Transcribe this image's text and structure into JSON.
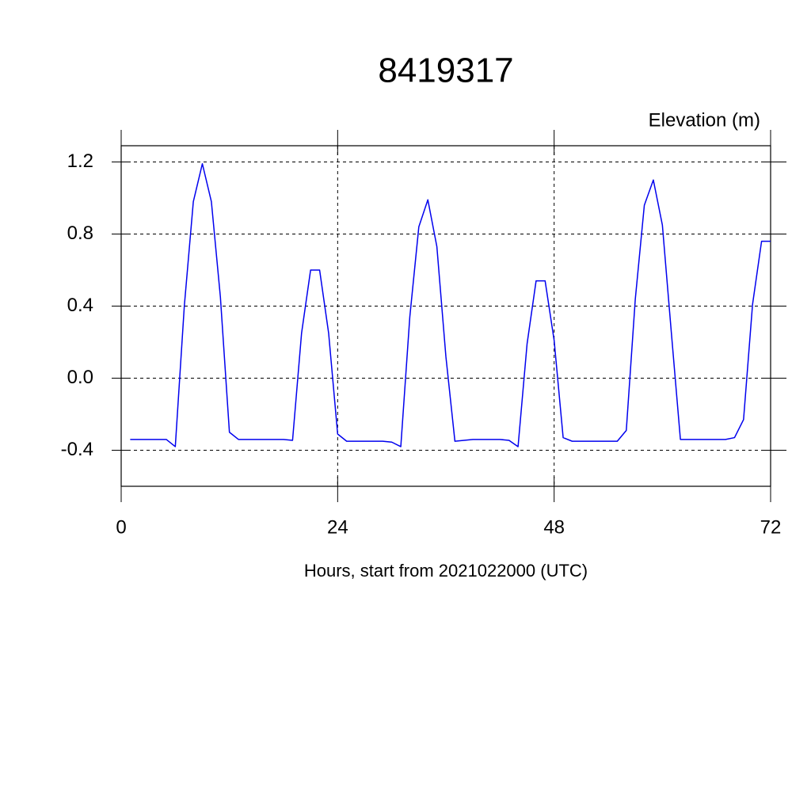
{
  "chart_data": {
    "type": "line",
    "title": "8419317",
    "y_axis_label": "Elevation (m)",
    "x_axis_label": "Hours, start from 2021022000 (UTC)",
    "x": [
      1,
      2,
      3,
      4,
      5,
      6,
      7,
      8,
      9,
      10,
      11,
      12,
      13,
      14,
      15,
      16,
      17,
      18,
      19,
      20,
      21,
      22,
      23,
      24,
      25,
      26,
      27,
      28,
      29,
      30,
      31,
      32,
      33,
      34,
      35,
      36,
      37,
      38,
      39,
      40,
      41,
      42,
      43,
      44,
      45,
      46,
      47,
      48,
      49,
      50,
      51,
      52,
      53,
      54,
      55,
      56,
      57,
      58,
      59,
      60,
      61,
      62,
      63,
      64,
      65,
      66,
      67,
      68,
      69,
      70,
      71,
      72
    ],
    "series": [
      {
        "name": "Elevation",
        "color": "#0000ee",
        "values": [
          -0.34,
          -0.34,
          -0.34,
          -0.34,
          -0.34,
          -0.38,
          0.4,
          0.98,
          1.19,
          0.98,
          0.45,
          -0.3,
          -0.34,
          -0.34,
          -0.34,
          -0.34,
          -0.34,
          -0.34,
          -0.345,
          0.25,
          0.6,
          0.6,
          0.25,
          -0.31,
          -0.35,
          -0.35,
          -0.35,
          -0.35,
          -0.35,
          -0.355,
          -0.38,
          0.34,
          0.84,
          0.99,
          0.73,
          0.12,
          -0.35,
          -0.345,
          -0.34,
          -0.34,
          -0.34,
          -0.34,
          -0.345,
          -0.38,
          0.19,
          0.54,
          0.54,
          0.21,
          -0.33,
          -0.35,
          -0.35,
          -0.35,
          -0.35,
          -0.35,
          -0.35,
          -0.29,
          0.44,
          0.96,
          1.1,
          0.85,
          0.25,
          -0.34,
          -0.34,
          -0.34,
          -0.34,
          -0.34,
          -0.34,
          -0.33,
          -0.23,
          0.41,
          0.76,
          0.76
        ]
      }
    ],
    "xlim": [
      0,
      72
    ],
    "xticks": [
      0,
      24,
      48,
      72
    ],
    "ylim": [
      -0.6,
      1.29
    ],
    "yticks": [
      -0.4,
      {
        "value": 0,
        "label": "0.0"
      },
      0.4,
      0.8,
      1.2
    ],
    "grid": true
  }
}
